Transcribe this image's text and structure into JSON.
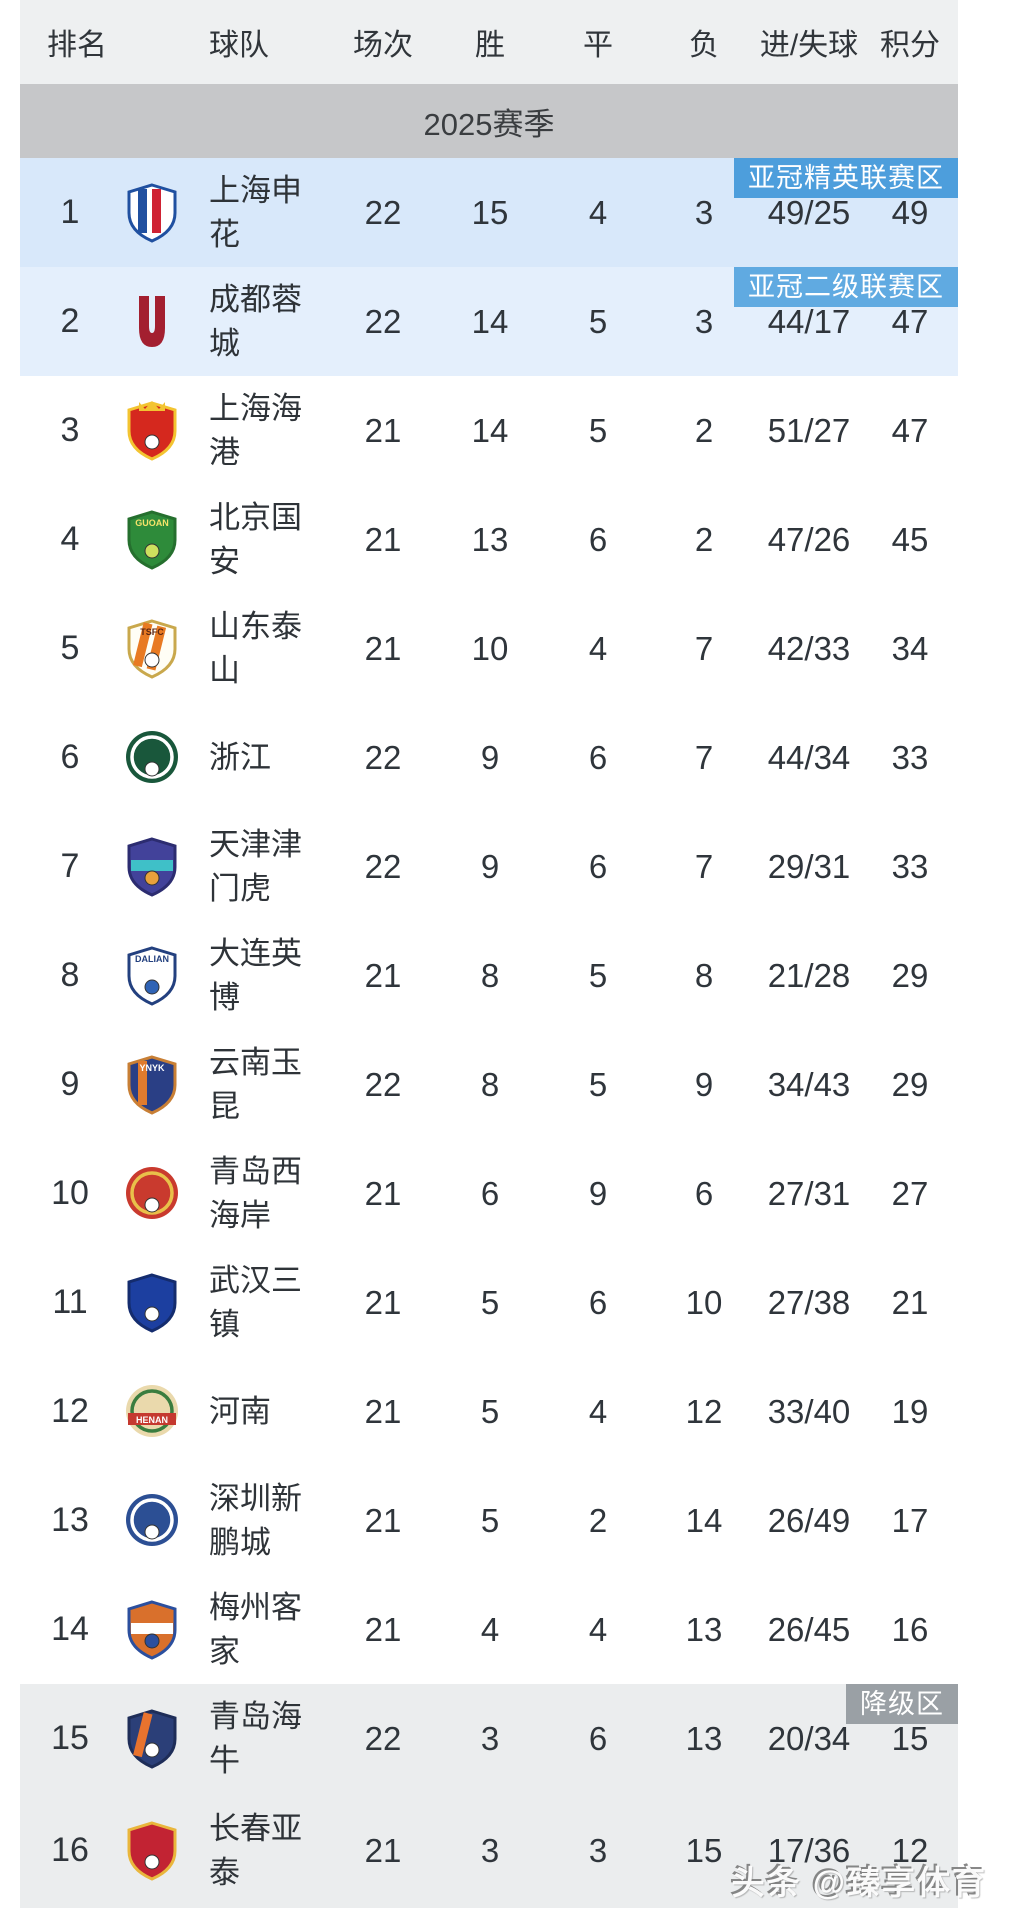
{
  "header": {
    "columns": [
      "排名",
      "球队",
      "场次",
      "胜",
      "平",
      "负",
      "进/失球",
      "积分"
    ]
  },
  "season": {
    "label": "2025赛季"
  },
  "colors": {
    "header_bg": "#eef0f1",
    "season_bg": "#c6c7c9",
    "afc_elite_blue": "#4d9edc",
    "afc_two_blue": "#60aae1",
    "relegation_gray": "#9aa0a5",
    "top_row_blue_1": "#d8e8fa",
    "top_row_blue_2": "#e4effc",
    "relegation_row_gray": "#ebedee"
  },
  "rows": [
    {
      "rank": "1",
      "team": "上海申花",
      "played": "22",
      "win": "15",
      "draw": "4",
      "loss": "3",
      "goals": "49/25",
      "points": "49",
      "bg": "#d8e8fa",
      "badge": {
        "label": "亚冠精英联赛区",
        "bg": "#4d9edc"
      },
      "crest": {
        "shape": "shield",
        "colors": [
          "#ffffff"
        ],
        "border": "#2050a0",
        "stripes": [
          "#2050a0",
          "#cf2233"
        ]
      }
    },
    {
      "rank": "2",
      "team": "成都蓉城",
      "played": "22",
      "win": "14",
      "draw": "5",
      "loss": "3",
      "goals": "44/17",
      "points": "47",
      "bg": "#e4effc",
      "badge": {
        "label": "亚冠二级联赛区",
        "bg": "#60aae1"
      },
      "crest": {
        "shape": "u",
        "colors": [
          "#a31f30"
        ]
      }
    },
    {
      "rank": "3",
      "team": "上海海港",
      "played": "21",
      "win": "14",
      "draw": "5",
      "loss": "2",
      "goals": "51/27",
      "points": "47",
      "bg": "#ffffff",
      "crest": {
        "shape": "shield",
        "colors": [
          "#d5281e"
        ],
        "border": "#f3c431",
        "crown": "#f3c431",
        "dot": "#ffffff"
      }
    },
    {
      "rank": "4",
      "team": "北京国安",
      "played": "21",
      "win": "13",
      "draw": "6",
      "loss": "2",
      "goals": "47/26",
      "points": "45",
      "bg": "#ffffff",
      "crest": {
        "shape": "shield",
        "colors": [
          "#2e8b3a"
        ],
        "border": "#256f2e",
        "label": "GUOAN",
        "labelColor": "#f5e36a",
        "dot": "#cde05e"
      }
    },
    {
      "rank": "5",
      "team": "山东泰山",
      "played": "21",
      "win": "10",
      "draw": "4",
      "loss": "7",
      "goals": "42/33",
      "points": "34",
      "bg": "#ffffff",
      "crest": {
        "shape": "shield",
        "colors": [
          "#fffef5"
        ],
        "border": "#c9a84c",
        "stripes": [
          "#e87a22",
          "#e87a22"
        ],
        "slant": true,
        "label": "TSFC",
        "labelColor": "#5b2612",
        "dot": "#ffffff"
      }
    },
    {
      "rank": "6",
      "team": "浙江",
      "played": "22",
      "win": "9",
      "draw": "6",
      "loss": "7",
      "goals": "44/34",
      "points": "33",
      "bg": "#ffffff",
      "crest": {
        "shape": "circle",
        "colors": [
          "#19573b"
        ],
        "ring": "#ffffff",
        "dot": "#ffffff"
      }
    },
    {
      "rank": "7",
      "team": "天津津门虎",
      "played": "22",
      "win": "9",
      "draw": "6",
      "loss": "7",
      "goals": "29/31",
      "points": "33",
      "bg": "#ffffff",
      "crest": {
        "shape": "shield",
        "colors": [
          "#42429a"
        ],
        "border": "#2c2c70",
        "band": "#3fc0c8",
        "dot": "#e8a13c"
      }
    },
    {
      "rank": "8",
      "team": "大连英博",
      "played": "21",
      "win": "8",
      "draw": "5",
      "loss": "8",
      "goals": "21/28",
      "points": "29",
      "bg": "#ffffff",
      "crest": {
        "shape": "shield",
        "colors": [
          "#ffffff"
        ],
        "border": "#23407f",
        "label": "DALIAN",
        "labelColor": "#23407f",
        "dot": "#2f63b5"
      }
    },
    {
      "rank": "9",
      "team": "云南玉昆",
      "played": "22",
      "win": "8",
      "draw": "5",
      "loss": "9",
      "goals": "34/43",
      "points": "29",
      "bg": "#ffffff",
      "crest": {
        "shape": "shield",
        "colors": [
          "#2a3f85"
        ],
        "border": "#c87f35",
        "stripes": [
          "#e07b2e"
        ],
        "label": "YNYK",
        "labelColor": "#ffffff"
      }
    },
    {
      "rank": "10",
      "team": "青岛西海岸",
      "played": "21",
      "win": "6",
      "draw": "9",
      "loss": "6",
      "goals": "27/31",
      "points": "27",
      "bg": "#ffffff",
      "crest": {
        "shape": "circle",
        "colors": [
          "#c93a2e"
        ],
        "ring": "#e9c04a",
        "dot": "#ffffff"
      }
    },
    {
      "rank": "11",
      "team": "武汉三镇",
      "played": "21",
      "win": "5",
      "draw": "6",
      "loss": "10",
      "goals": "27/38",
      "points": "21",
      "bg": "#ffffff",
      "crest": {
        "shape": "shield",
        "colors": [
          "#1c3fa0"
        ],
        "border": "#142c6e",
        "dot": "#ffffff"
      }
    },
    {
      "rank": "12",
      "team": "河南",
      "played": "21",
      "win": "5",
      "draw": "4",
      "loss": "12",
      "goals": "33/40",
      "points": "19",
      "bg": "#ffffff",
      "crest": {
        "shape": "circle",
        "colors": [
          "#ead9ac"
        ],
        "ring": "#3a7d3f",
        "band": "#c5392f",
        "label": "HENAN",
        "labelColor": "#ffffff"
      }
    },
    {
      "rank": "13",
      "team": "深圳新鹏城",
      "played": "21",
      "win": "5",
      "draw": "2",
      "loss": "14",
      "goals": "26/49",
      "points": "17",
      "bg": "#ffffff",
      "crest": {
        "shape": "circle",
        "colors": [
          "#2c4f94"
        ],
        "ring": "#ffffff",
        "dot": "#ffffff"
      }
    },
    {
      "rank": "14",
      "team": "梅州客家",
      "played": "21",
      "win": "4",
      "draw": "4",
      "loss": "13",
      "goals": "26/45",
      "points": "16",
      "bg": "#ffffff",
      "crest": {
        "shape": "shield",
        "colors": [
          "#d9702c"
        ],
        "border": "#2b4f9e",
        "band": "#ffffff",
        "dot": "#2b4f9e"
      }
    },
    {
      "rank": "15",
      "team": "青岛海牛",
      "played": "22",
      "win": "3",
      "draw": "6",
      "loss": "13",
      "goals": "20/34",
      "points": "15",
      "bg": "#ebedee",
      "badge": {
        "label": "降级区",
        "bg": "#9aa0a5"
      },
      "crest": {
        "shape": "shield",
        "colors": [
          "#2b3f78"
        ],
        "border": "#1e2d58",
        "stripes": [
          "#e8732e"
        ],
        "slant": true,
        "dot": "#ffffff"
      }
    },
    {
      "rank": "16",
      "team": "长春亚泰",
      "played": "21",
      "win": "3",
      "draw": "3",
      "loss": "15",
      "goals": "17/36",
      "points": "12",
      "bg": "#ebedee",
      "crest": {
        "shape": "shield",
        "colors": [
          "#c22333"
        ],
        "border": "#e9b63c",
        "dot": "#ffffff"
      }
    }
  ],
  "watermark": {
    "text": "头条 @臻享体育"
  }
}
